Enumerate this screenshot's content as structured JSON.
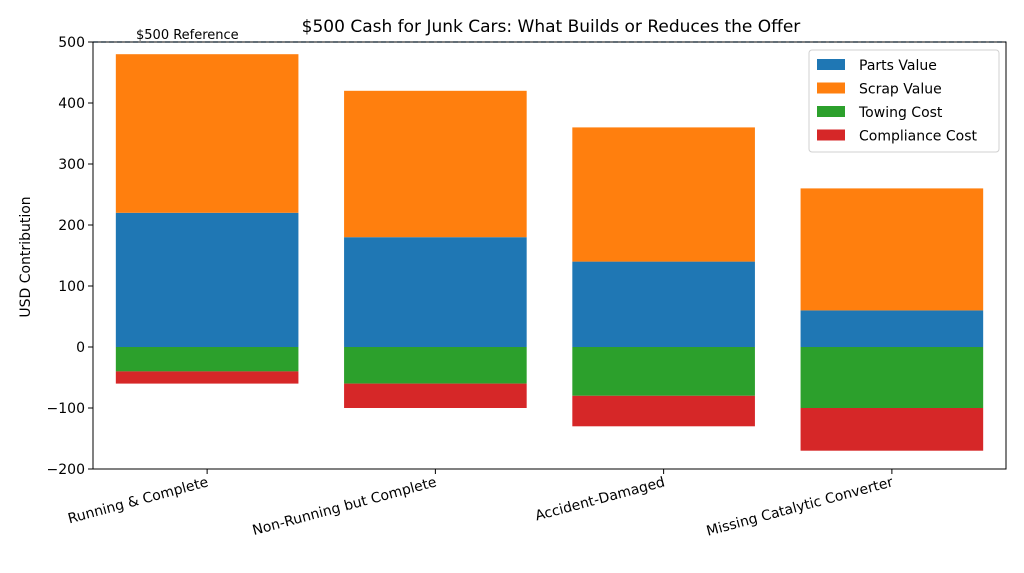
{
  "chart_data": {
    "type": "bar",
    "stacked": true,
    "title": "$500 Cash for Junk Cars: What Builds or Reduces the Offer",
    "xlabel": "",
    "ylabel": "USD Contribution",
    "ylim": [
      -200,
      500
    ],
    "yticks": [
      -200,
      -100,
      0,
      100,
      200,
      300,
      400,
      500
    ],
    "ytick_labels": [
      "−200",
      "−100",
      "0",
      "100",
      "200",
      "300",
      "400",
      "500"
    ],
    "categories": [
      "Running & Complete",
      "Non-Running but Complete",
      "Accident-Damaged",
      "Missing Catalytic Converter"
    ],
    "series": [
      {
        "name": "Parts Value",
        "color": "#1f77b4",
        "values": [
          220,
          180,
          140,
          60
        ]
      },
      {
        "name": "Scrap Value",
        "color": "#ff7f0e",
        "values": [
          260,
          240,
          220,
          200
        ]
      },
      {
        "name": "Towing Cost",
        "color": "#2ca02c",
        "values": [
          -40,
          -60,
          -80,
          -100
        ]
      },
      {
        "name": "Compliance Cost",
        "color": "#d62728",
        "values": [
          -20,
          -40,
          -50,
          -70
        ]
      }
    ],
    "reference_line": {
      "value": 500,
      "label": "$500 Reference",
      "color": "#1f77b4",
      "style": "dashed"
    },
    "legend_position": "top-right",
    "grid": false
  }
}
